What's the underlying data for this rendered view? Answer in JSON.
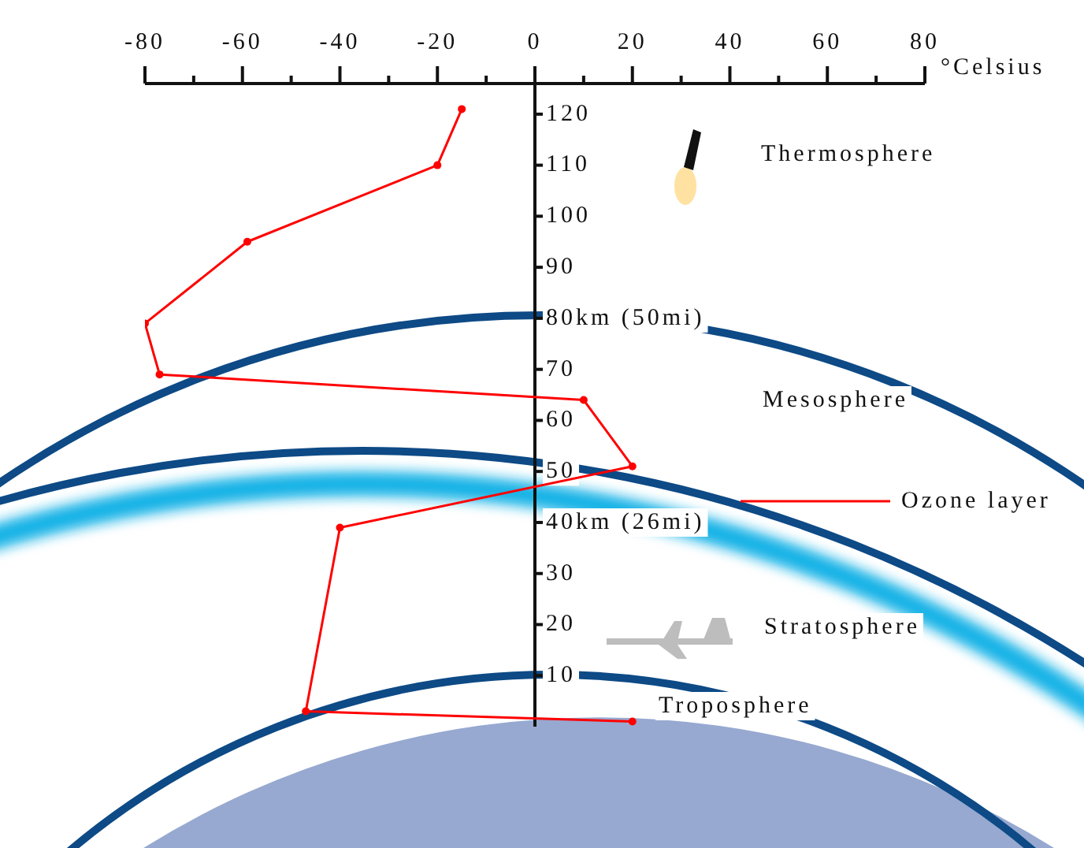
{
  "chart_data": {
    "type": "line",
    "xlabel": "°Celsius",
    "xlim": [
      -80,
      80
    ],
    "ylim": [
      0,
      126
    ],
    "xticks": [
      -80,
      {
        "value": -70,
        "label": null
      },
      -60,
      {
        "value": -50,
        "label": null
      },
      -40,
      {
        "value": -30,
        "label": null
      },
      -20,
      {
        "value": -10,
        "label": null
      },
      0,
      {
        "value": 10,
        "label": null
      },
      20,
      {
        "value": 30,
        "label": null
      },
      40,
      {
        "value": 50,
        "label": null
      },
      60,
      {
        "value": 70,
        "label": null
      },
      80
    ],
    "yticks": [
      10,
      20,
      30,
      {
        "value": 40,
        "label": "40km (26mi)"
      },
      50,
      60,
      70,
      {
        "value": 80,
        "label": "80km (50mi)"
      },
      90,
      100,
      110,
      120
    ],
    "series": [
      {
        "color": "#ff0000",
        "x": [
          -15,
          -20,
          -59,
          -80,
          -77,
          10,
          20,
          -40,
          -47,
          20
        ],
        "values": [
          121,
          110,
          95,
          79,
          69,
          64,
          51,
          39,
          3,
          1
        ]
      }
    ],
    "marker": "circle",
    "annotations": [
      "Thermosphere",
      "Mesosphere",
      "Ozone layer",
      "Stratosphere",
      "Troposphere"
    ]
  }
}
